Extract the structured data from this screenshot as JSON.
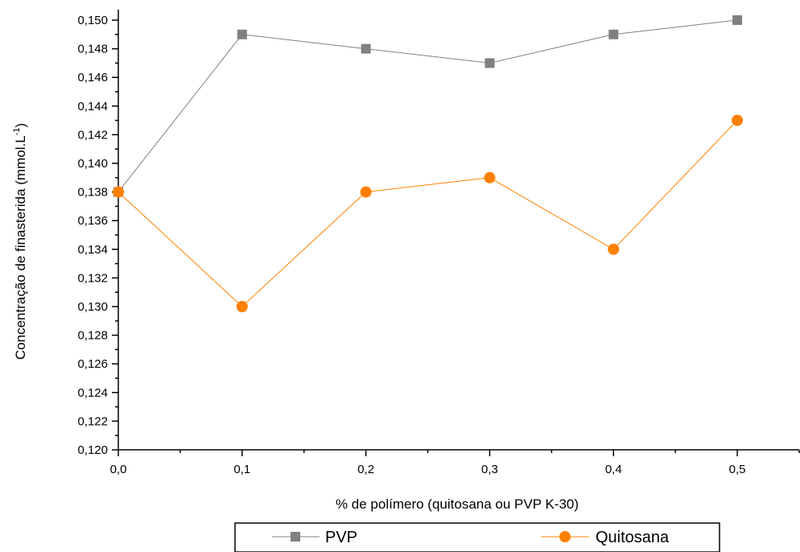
{
  "chart_data": {
    "type": "line",
    "title": "",
    "xlabel": "% de polímero (quitosana ou PVP K-30)",
    "ylabel_prefix": "Concentração de finasterida (mmol.L",
    "ylabel_superscript": "-1",
    "ylabel_suffix": ")",
    "x": [
      0.0,
      0.1,
      0.2,
      0.3,
      0.4,
      0.5
    ],
    "xticks": [
      "0,0",
      "0,1",
      "0,2",
      "0,3",
      "0,4",
      "0,5"
    ],
    "xlim": [
      0.0,
      0.55
    ],
    "ylim": [
      0.12,
      0.15
    ],
    "yticks": [
      "0,120",
      "0,122",
      "0,124",
      "0,126",
      "0,128",
      "0,130",
      "0,132",
      "0,134",
      "0,136",
      "0,138",
      "0,140",
      "0,142",
      "0,144",
      "0,146",
      "0,148",
      "0,150"
    ],
    "grid": false,
    "legend_position": "bottom",
    "series": [
      {
        "name": "PVP",
        "values": [
          0.138,
          0.149,
          0.148,
          0.147,
          0.149,
          0.15
        ],
        "color": "#808080",
        "marker": "square"
      },
      {
        "name": "Quitosana",
        "values": [
          0.138,
          0.13,
          0.138,
          0.139,
          0.134,
          0.143
        ],
        "color": "#ff8000",
        "marker": "circle"
      }
    ]
  }
}
